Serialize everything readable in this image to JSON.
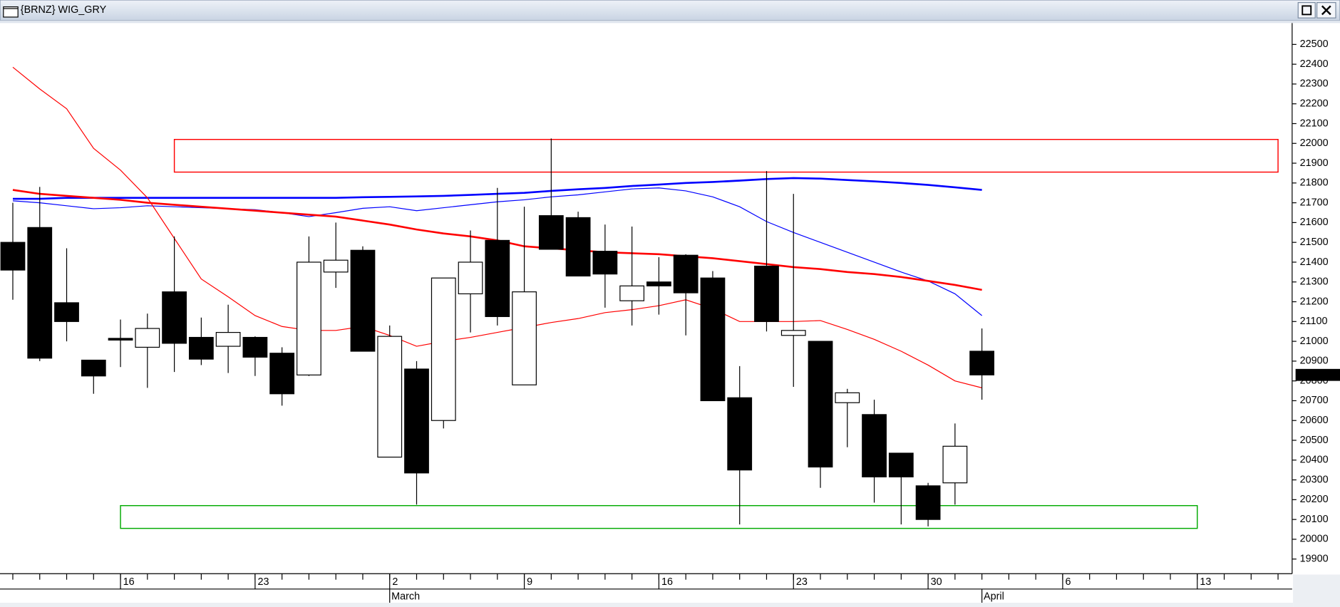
{
  "chart_data": {
    "type": "candlestick",
    "title": "{BRNZ} WIG_GRY",
    "categories": [
      null,
      null,
      null,
      null,
      "16",
      null,
      null,
      null,
      null,
      "23",
      null,
      null,
      null,
      null,
      "2",
      null,
      null,
      null,
      null,
      "9",
      null,
      null,
      null,
      null,
      "16",
      null,
      null,
      null,
      null,
      "23",
      null,
      null,
      null,
      null,
      "30",
      null,
      null,
      null,
      null,
      "6",
      null,
      null,
      null,
      null,
      "13",
      null,
      null,
      null
    ],
    "months": [
      {
        "label": "March",
        "index": 14
      },
      {
        "label": "April",
        "index": 36
      }
    ],
    "open": [
      21500,
      21575,
      21195,
      20905,
      21015,
      20970,
      21250,
      21020,
      20975,
      21020,
      20940,
      20830,
      21350,
      21460,
      20415,
      20860,
      20600,
      21240,
      21510,
      20780,
      21635,
      21625,
      21455,
      21205,
      21300,
      21435,
      21320,
      20715,
      21380,
      21030,
      21000,
      20690,
      20630,
      20435,
      20270,
      20285,
      20950,
      null,
      null,
      null,
      null,
      null,
      null,
      null,
      null,
      null,
      null,
      null
    ],
    "high": [
      21700,
      21780,
      21470,
      20905,
      21110,
      21140,
      21530,
      21120,
      21185,
      21025,
      20970,
      21530,
      21600,
      21480,
      21080,
      20900,
      21320,
      21560,
      21775,
      21680,
      22025,
      21655,
      21590,
      21580,
      21425,
      21440,
      21355,
      20875,
      21860,
      21745,
      21000,
      20760,
      20705,
      20435,
      20285,
      20585,
      21065,
      null,
      null,
      null,
      null,
      null,
      null,
      null,
      null,
      null,
      null,
      null
    ],
    "low": [
      21210,
      20900,
      21000,
      20735,
      20870,
      20765,
      20845,
      20880,
      20840,
      20825,
      20675,
      20825,
      21270,
      20950,
      20415,
      20175,
      20560,
      21045,
      21080,
      20780,
      21465,
      21330,
      21170,
      21080,
      21135,
      21030,
      20700,
      20075,
      21050,
      20770,
      20260,
      20465,
      20185,
      20075,
      20065,
      20175,
      20705,
      null,
      null,
      null,
      null,
      null,
      null,
      null,
      null,
      null,
      null,
      null
    ],
    "close": [
      21360,
      20915,
      21100,
      20825,
      21010,
      21065,
      20990,
      20910,
      21045,
      20920,
      20735,
      21400,
      21410,
      20950,
      21025,
      20335,
      21320,
      21400,
      21125,
      21250,
      21465,
      21330,
      21340,
      21280,
      21280,
      21245,
      20700,
      20350,
      21100,
      21055,
      20365,
      20740,
      20315,
      20315,
      20100,
      20470,
      20830.38,
      null,
      null,
      null,
      null,
      null,
      null,
      null,
      null,
      null,
      null,
      null
    ],
    "series": [
      {
        "color": "#0000ff",
        "width": 2.2,
        "values": [
          21720,
          21720,
          21725,
          21725,
          21725,
          21725,
          21725,
          21725,
          21725,
          21725,
          21725,
          21725,
          21725,
          21728,
          21730,
          21732,
          21735,
          21740,
          21745,
          21750,
          21760,
          21768,
          21775,
          21785,
          21792,
          21800,
          21805,
          21812,
          21820,
          21825,
          21822,
          21815,
          21808,
          21800,
          21790,
          21778,
          21765,
          null,
          null,
          null,
          null,
          null,
          null,
          null,
          null,
          null,
          null,
          null
        ]
      },
      {
        "color": "#0000ff",
        "width": 1,
        "values": [
          21710,
          21700,
          21685,
          21670,
          21675,
          21685,
          21680,
          21675,
          21670,
          21665,
          21650,
          21630,
          21650,
          21672,
          21680,
          21660,
          21675,
          21690,
          21705,
          21715,
          21730,
          21740,
          21755,
          21770,
          21775,
          21760,
          21730,
          21680,
          21605,
          21550,
          21500,
          21450,
          21400,
          21350,
          21305,
          21240,
          21130,
          null,
          null,
          null,
          null,
          null,
          null,
          null,
          null,
          null,
          null,
          null
        ]
      },
      {
        "color": "#ff0000",
        "width": 2.2,
        "values": [
          21765,
          21745,
          21735,
          21725,
          21715,
          21700,
          21690,
          21680,
          21670,
          21660,
          21650,
          21640,
          21630,
          21610,
          21590,
          21565,
          21545,
          21530,
          21510,
          21480,
          21470,
          21460,
          21450,
          21445,
          21440,
          21430,
          21420,
          21405,
          21390,
          21375,
          21365,
          21350,
          21340,
          21325,
          21305,
          21285,
          21260,
          null,
          null,
          null,
          null,
          null,
          null,
          null,
          null,
          null,
          null,
          null
        ]
      },
      {
        "color": "#ff0000",
        "width": 1,
        "values": [
          22385,
          22275,
          22175,
          21975,
          21865,
          21725,
          21520,
          21315,
          21225,
          21130,
          21075,
          21055,
          21055,
          21075,
          21030,
          20975,
          21000,
          21020,
          21045,
          21070,
          21095,
          21115,
          21145,
          21160,
          21180,
          21210,
          21165,
          21100,
          21100,
          21100,
          21105,
          21060,
          21010,
          20950,
          20880,
          20800,
          20765,
          null,
          null,
          null,
          null,
          null,
          null,
          null,
          null,
          null,
          null,
          null
        ]
      }
    ],
    "zones": [
      {
        "color": "#ff0000",
        "x": [
          6,
          47
        ],
        "y": [
          21855,
          22020
        ]
      },
      {
        "color": "#00aa00",
        "x": [
          4,
          44
        ],
        "y": [
          20055,
          20170
        ]
      }
    ],
    "up_color": "#ffffff",
    "down_color": "#000000",
    "last_price_color": "#00ff00",
    "ylim": [
      19826,
      22608
    ],
    "yticks": [
      19900,
      20000,
      20100,
      20200,
      20300,
      20400,
      20500,
      20600,
      20700,
      20800,
      20900,
      21000,
      21100,
      21200,
      21300,
      21400,
      21500,
      21600,
      21700,
      21800,
      21900,
      22000,
      22100,
      22200,
      22300,
      22400,
      22500
    ]
  }
}
